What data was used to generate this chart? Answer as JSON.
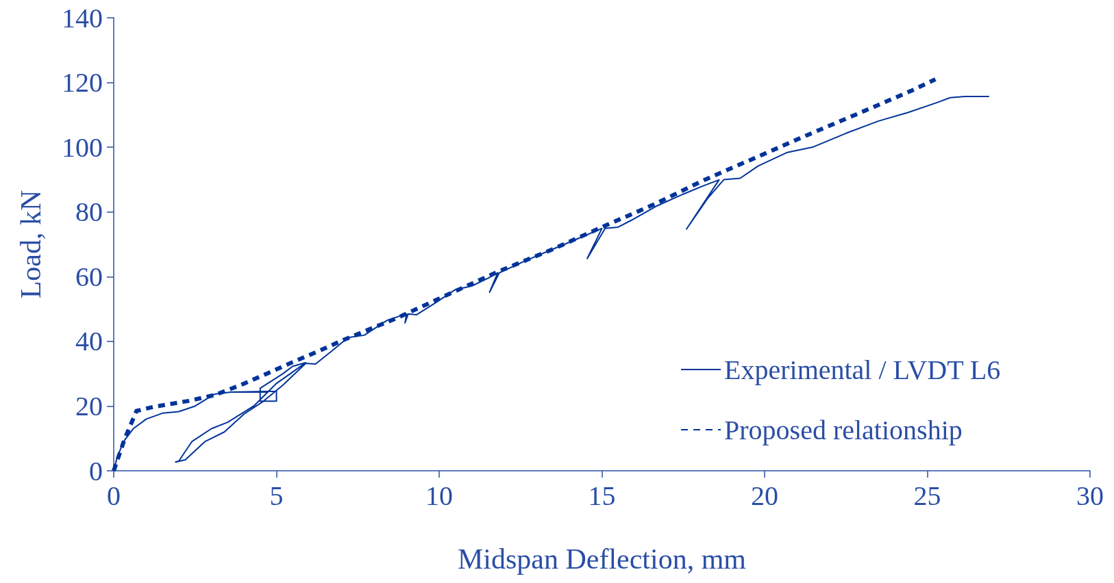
{
  "chart_data": {
    "type": "line",
    "xlabel": "Midspan Deflection, mm",
    "ylabel": "Load, kN",
    "xlim": [
      0,
      30
    ],
    "xticks": [
      0,
      5,
      10,
      15,
      20,
      25,
      30
    ],
    "ylim": [
      0,
      140
    ],
    "yticks": [
      0,
      20,
      40,
      60,
      80,
      100,
      120,
      140
    ],
    "grid": false,
    "legend": "bottom right",
    "marker": "none",
    "series": [
      {
        "name": "Experimental / LVDT L6",
        "color": "#003399",
        "line_style": "solid",
        "x": [
          0,
          0.1,
          0.3,
          0.6,
          1.0,
          1.5,
          2.0,
          2.5,
          3.1,
          3.6,
          5.0,
          5.0,
          4.5,
          4.5,
          5.2,
          5.5,
          5.9,
          5.0,
          4.3,
          3.5,
          3.0,
          2.4,
          2.0,
          1.9,
          2.2,
          2.8,
          3.4,
          4.0,
          4.6,
          5.2,
          5.9,
          6.2,
          6.7,
          7.2,
          7.7,
          8.4,
          9.0,
          8.95,
          9.05,
          9.3,
          9.9,
          10.5,
          11.0,
          11.5,
          11.8,
          11.55,
          11.85,
          12.6,
          13.45,
          14.25,
          15.0,
          14.55,
          15.1,
          15.5,
          15.9,
          16.7,
          17.5,
          18.1,
          18.6,
          17.6,
          18.25,
          18.75,
          19.25,
          19.8,
          20.7,
          21.5,
          22.5,
          23.5,
          24.4,
          25.3,
          25.7,
          26.15,
          26.9
        ],
        "values": [
          0,
          4,
          9,
          13,
          16,
          17.8,
          18.3,
          20,
          23.7,
          24.3,
          24.6,
          21.5,
          21.5,
          25.5,
          30,
          32.3,
          33.4,
          27,
          20,
          15,
          13,
          9,
          3,
          2.7,
          3.4,
          9,
          12,
          17.5,
          21.5,
          26.5,
          33.2,
          33,
          37,
          41.2,
          41.9,
          46.5,
          48.5,
          45.7,
          48.5,
          48.2,
          52,
          56,
          57.1,
          59.5,
          61.2,
          55.2,
          61.2,
          64.7,
          68.3,
          71.7,
          74.9,
          65.6,
          74.9,
          75.3,
          77.4,
          81.9,
          85.5,
          88,
          89.9,
          74.7,
          84.2,
          90,
          90.4,
          94.2,
          98.4,
          100.1,
          104.3,
          108.1,
          110.7,
          113.8,
          115.3,
          115.7,
          115.7
        ]
      },
      {
        "name": "Proposed relationship",
        "color": "#003399",
        "line_style": "dashed",
        "x": [
          0,
          0.33,
          0.7,
          1.2,
          2.3,
          3.1,
          3.9,
          4.7,
          5.5,
          6.3,
          7.05,
          8.7,
          10.3,
          11.8,
          13.45,
          15,
          16.6,
          18.15,
          19.66,
          21.3,
          22.9,
          24.5,
          25.25
        ],
        "values": [
          0,
          9.7,
          18.5,
          19.7,
          21.6,
          23.4,
          26.5,
          30,
          33.6,
          37,
          40.4,
          47.2,
          54.6,
          61.5,
          68.3,
          75.3,
          82.3,
          89.9,
          96.5,
          103.7,
          110.5,
          117.4,
          121
        ]
      }
    ]
  }
}
